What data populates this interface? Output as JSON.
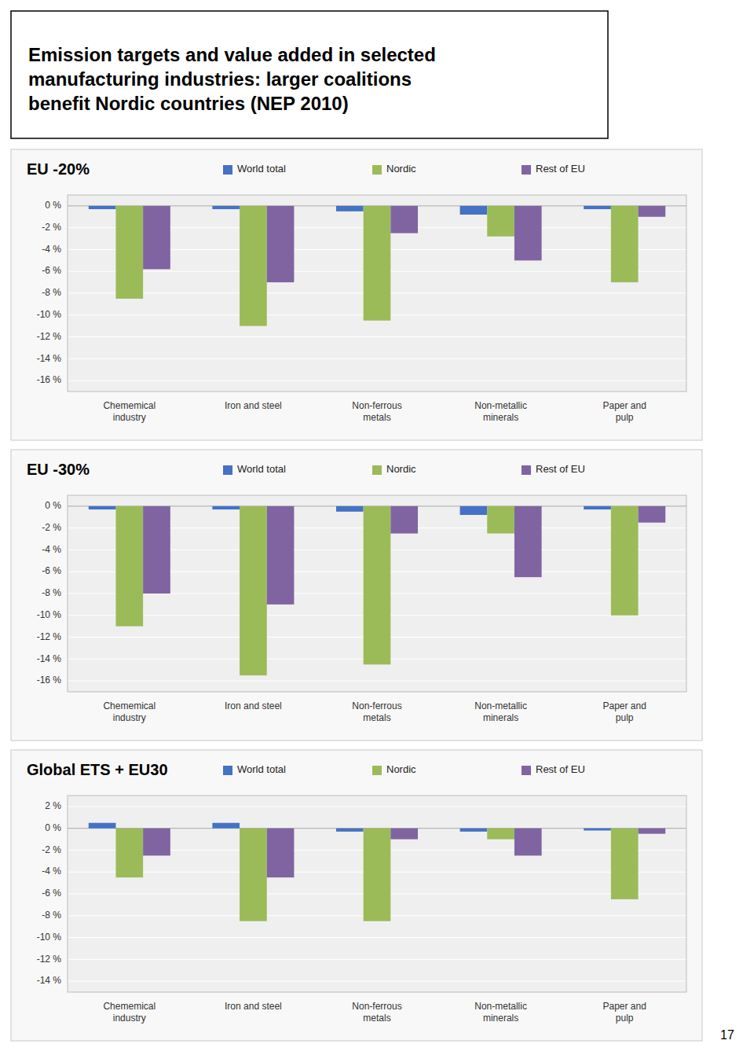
{
  "title": "Emission targets and value added in selected\nmanufacturing industries: larger coalitions\nbenefit Nordic countries (NEP 2010)",
  "annotations": [
    "17"
  ],
  "chart_data": [
    {
      "type": "bar",
      "title": "EU -20%",
      "categories": [
        "Chememical\nindustry",
        "Iron and steel",
        "Non-ferrous\nmetals",
        "Non-metallic\nminerals",
        "Paper and\npulp"
      ],
      "series": [
        {
          "name": "World total",
          "color": "#4472C4",
          "values": [
            -0.3,
            -0.3,
            -0.5,
            -0.8,
            -0.3
          ]
        },
        {
          "name": "Nordic",
          "color": "#9BBB59",
          "values": [
            -8.5,
            -11.0,
            -10.5,
            -2.8,
            -7.0
          ]
        },
        {
          "name": "Rest of EU",
          "color": "#8064A2",
          "values": [
            -5.8,
            -7.0,
            -2.5,
            -5.0,
            -1.0
          ]
        }
      ],
      "ylim": [
        -17,
        1
      ],
      "yticks": [
        {
          "value": 0,
          "label": "0 %"
        },
        {
          "value": -2,
          "label": "-2 %"
        },
        {
          "value": -4,
          "label": "-4 %"
        },
        {
          "value": -6,
          "label": "-6 %"
        },
        {
          "value": -8,
          "label": "-8 %"
        },
        {
          "value": -10,
          "label": "-10 %"
        },
        {
          "value": -12,
          "label": "-12 %"
        },
        {
          "value": -14,
          "label": "-14 %"
        },
        {
          "value": -16,
          "label": "-16 %"
        }
      ],
      "grid": true,
      "legend": "top"
    },
    {
      "type": "bar",
      "title": "EU -30%",
      "categories": [
        "Chememical\nindustry",
        "Iron and steel",
        "Non-ferrous\nmetals",
        "Non-metallic\nminerals",
        "Paper and\npulp"
      ],
      "series": [
        {
          "name": "World total",
          "color": "#4472C4",
          "values": [
            -0.3,
            -0.3,
            -0.5,
            -0.8,
            -0.3
          ]
        },
        {
          "name": "Nordic",
          "color": "#9BBB59",
          "values": [
            -11.0,
            -15.5,
            -14.5,
            -2.5,
            -10.0
          ]
        },
        {
          "name": "Rest of EU",
          "color": "#8064A2",
          "values": [
            -8.0,
            -9.0,
            -2.5,
            -6.5,
            -1.5
          ]
        }
      ],
      "ylim": [
        -17,
        1
      ],
      "yticks": [
        {
          "value": 0,
          "label": "0 %"
        },
        {
          "value": -2,
          "label": "-2 %"
        },
        {
          "value": -4,
          "label": "-4 %"
        },
        {
          "value": -6,
          "label": "-6 %"
        },
        {
          "value": -8,
          "label": "-8 %"
        },
        {
          "value": -10,
          "label": "-10 %"
        },
        {
          "value": -12,
          "label": "-12 %"
        },
        {
          "value": -14,
          "label": "-14 %"
        },
        {
          "value": -16,
          "label": "-16 %"
        }
      ],
      "grid": true,
      "legend": "top"
    },
    {
      "type": "bar",
      "title": "Global ETS + EU30",
      "categories": [
        "Chememical\nindustry",
        "Iron and steel",
        "Non-ferrous\nmetals",
        "Non-metallic\nminerals",
        "Paper and\npulp"
      ],
      "series": [
        {
          "name": "World total",
          "color": "#4472C4",
          "values": [
            0.5,
            0.5,
            -0.3,
            -0.3,
            -0.2
          ]
        },
        {
          "name": "Nordic",
          "color": "#9BBB59",
          "values": [
            -4.5,
            -8.5,
            -8.5,
            -1.0,
            -6.5
          ]
        },
        {
          "name": "Rest of EU",
          "color": "#8064A2",
          "values": [
            -2.5,
            -4.5,
            -1.0,
            -2.5,
            -0.5
          ]
        }
      ],
      "ylim": [
        -15,
        3
      ],
      "yticks": [
        {
          "value": 2,
          "label": "2 %"
        },
        {
          "value": 0,
          "label": "0 %"
        },
        {
          "value": -2,
          "label": "-2 %"
        },
        {
          "value": -4,
          "label": "-4 %"
        },
        {
          "value": -6,
          "label": "-6 %"
        },
        {
          "value": -8,
          "label": "-8 %"
        },
        {
          "value": -10,
          "label": "-10 %"
        },
        {
          "value": -12,
          "label": "-12 %"
        },
        {
          "value": -14,
          "label": "-14 %"
        }
      ],
      "grid": true,
      "legend": "top"
    }
  ]
}
